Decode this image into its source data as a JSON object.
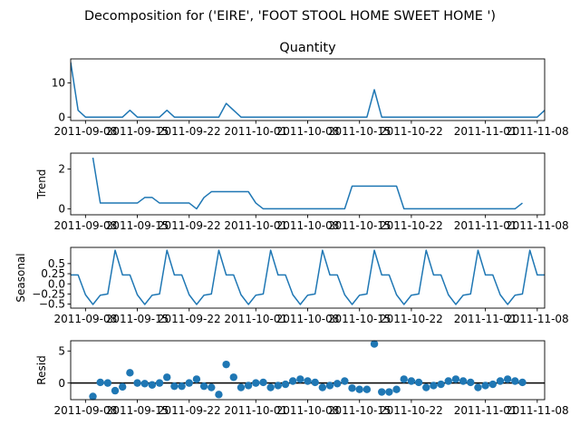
{
  "suptitle": "Decomposition for ('EIRE', 'FOOT STOOL HOME SWEET HOME ')",
  "colors": {
    "line": "#1f77b4",
    "axis": "#000000",
    "zero_line": "#000000"
  },
  "chart_data": [
    {
      "type": "line",
      "title": "Quantity",
      "ylabel": "",
      "x_range": [
        "2011-09-06",
        "2011-11-09"
      ],
      "ylim": [
        -1,
        17
      ],
      "yticks": [
        0,
        10
      ],
      "xtick_labels": [
        "2011-09-08",
        "2011-09-15",
        "2011-09-22",
        "2011-10-01",
        "2011-10-08",
        "2011-10-15",
        "2011-10-22",
        "2011-11-01",
        "2011-11-08"
      ],
      "values": [
        16,
        2,
        0,
        0,
        0,
        0,
        0,
        0,
        2,
        0,
        0,
        0,
        0,
        2,
        0,
        0,
        0,
        0,
        0,
        0,
        0,
        4,
        2,
        0,
        0,
        0,
        0,
        0,
        0,
        0,
        0,
        0,
        0,
        0,
        0,
        0,
        0,
        0,
        0,
        0,
        0,
        8,
        0,
        0,
        0,
        0,
        0,
        0,
        0,
        0,
        0,
        0,
        0,
        0,
        0,
        0,
        0,
        0,
        0,
        0,
        0,
        0,
        0,
        0,
        2
      ]
    },
    {
      "type": "line",
      "title": "",
      "ylabel": "Trend",
      "x_range": [
        "2011-09-06",
        "2011-11-09"
      ],
      "ylim": [
        -0.3,
        2.8
      ],
      "yticks": [
        0,
        2
      ],
      "xtick_labels": [
        "2011-09-08",
        "2011-09-15",
        "2011-09-22",
        "2011-10-01",
        "2011-10-08",
        "2011-10-15",
        "2011-10-22",
        "2011-11-01",
        "2011-11-08"
      ],
      "values": [
        null,
        null,
        null,
        2.57,
        0.29,
        0.29,
        0.29,
        0.29,
        0.29,
        0.29,
        0.57,
        0.57,
        0.29,
        0.29,
        0.29,
        0.29,
        0.29,
        0.0,
        0.57,
        0.86,
        0.86,
        0.86,
        0.86,
        0.86,
        0.86,
        0.29,
        0.0,
        0.0,
        0.0,
        0.0,
        0.0,
        0.0,
        0.0,
        0.0,
        0.0,
        0.0,
        0.0,
        0.0,
        1.14,
        1.14,
        1.14,
        1.14,
        1.14,
        1.14,
        1.14,
        0.0,
        0.0,
        0.0,
        0.0,
        0.0,
        0.0,
        0.0,
        0.0,
        0.0,
        0.0,
        0.0,
        0.0,
        0.0,
        0.0,
        0.0,
        0.0,
        0.29,
        null,
        null,
        null
      ]
    },
    {
      "type": "line",
      "title": "",
      "ylabel": "Seasonal",
      "x_range": [
        "2011-09-06",
        "2011-11-09"
      ],
      "ylim": [
        -0.6,
        0.9
      ],
      "yticks": [
        -0.5,
        -0.25,
        0.0,
        0.25,
        0.5
      ],
      "ytick_labels": [
        "−0.5",
        "−0.25",
        "0.0",
        "0.25",
        "0.5"
      ],
      "xtick_labels": [
        "2011-09-08",
        "2011-09-15",
        "2011-09-22",
        "2011-10-01",
        "2011-10-08",
        "2011-10-15",
        "2011-10-22",
        "2011-11-01",
        "2011-11-08"
      ],
      "period_pattern": [
        0.22,
        0.22,
        -0.27,
        -0.51,
        -0.28,
        -0.25,
        0.83
      ]
    },
    {
      "type": "scatter",
      "title": "",
      "ylabel": "Resid",
      "x_range": [
        "2011-09-06",
        "2011-11-09"
      ],
      "ylim": [
        -2.6,
        6.6
      ],
      "yticks": [
        0,
        5
      ],
      "zero_line": true,
      "xtick_labels": [
        "2011-09-08",
        "2011-09-15",
        "2011-09-22",
        "2011-10-01",
        "2011-10-08",
        "2011-10-15",
        "2011-10-22",
        "2011-11-01",
        "2011-11-08"
      ],
      "values": [
        null,
        null,
        null,
        -2.1,
        0.1,
        0.0,
        -1.2,
        -0.6,
        1.6,
        0.0,
        -0.1,
        -0.3,
        0.0,
        0.9,
        -0.5,
        -0.5,
        0.0,
        0.6,
        -0.5,
        -0.7,
        -1.8,
        2.9,
        0.9,
        -0.7,
        -0.4,
        0.0,
        0.1,
        -0.7,
        -0.4,
        -0.2,
        0.3,
        0.6,
        0.3,
        0.1,
        -0.7,
        -0.4,
        -0.1,
        0.3,
        -0.8,
        -1.0,
        -1.0,
        6.1,
        -1.4,
        -1.4,
        -1.0,
        0.6,
        0.3,
        0.1,
        -0.7,
        -0.4,
        -0.2,
        0.3,
        0.6,
        0.3,
        0.1,
        -0.7,
        -0.4,
        -0.2,
        0.3,
        0.6,
        0.3,
        0.1,
        null,
        null,
        null
      ]
    }
  ]
}
